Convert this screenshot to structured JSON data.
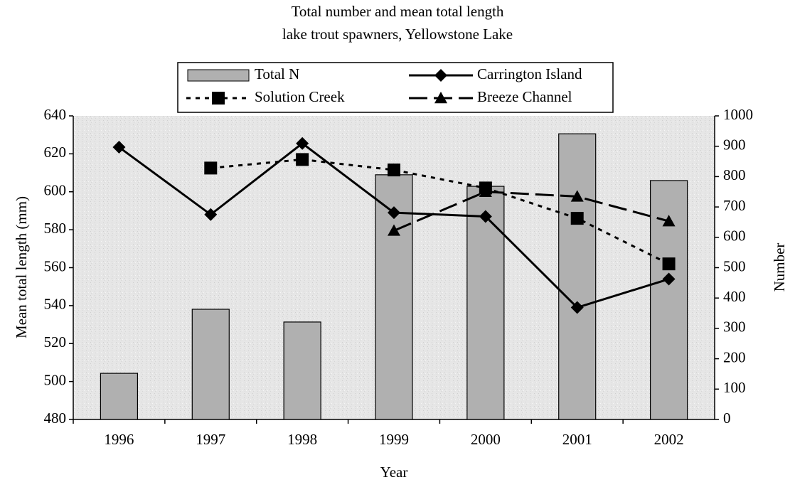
{
  "chart_data": {
    "type": "bar-line",
    "title": [
      "Total number and mean total length",
      "lake trout spawners, Yellowstone Lake"
    ],
    "x_label": "Year",
    "y_label": "Mean total length (mm)",
    "y2_label": "Number",
    "categories": [
      "1996",
      "1997",
      "1998",
      "1999",
      "2000",
      "2001",
      "2002"
    ],
    "series": [
      {
        "name": "Total N",
        "type": "bar",
        "axis": "y2",
        "color": "#b0b0b0",
        "values": [
          152,
          363,
          321,
          806,
          768,
          941,
          787
        ]
      },
      {
        "name": "Carrington Island",
        "type": "line",
        "color": "#000000",
        "marker": "diamond",
        "dash": "solid",
        "values": [
          623.5,
          588,
          625.5,
          589,
          587,
          539,
          554
        ]
      },
      {
        "name": "Solution Creek",
        "type": "line",
        "color": "#000000",
        "marker": "square",
        "dash": "dotted",
        "values": [
          null,
          612.5,
          617,
          611.5,
          602,
          586,
          562
        ]
      },
      {
        "name": "Breeze Channel",
        "type": "line",
        "color": "#000000",
        "marker": "triangle",
        "dash": "long",
        "values": [
          null,
          null,
          null,
          579.5,
          600,
          597.5,
          584.5
        ]
      }
    ],
    "ylim": [
      480,
      640
    ],
    "yticks": [
      480,
      500,
      520,
      540,
      560,
      580,
      600,
      620,
      640
    ],
    "y2lim": [
      0,
      1000
    ],
    "y2ticks": [
      0,
      100,
      200,
      300,
      400,
      500,
      600,
      700,
      800,
      900,
      1000
    ],
    "legend": "top"
  }
}
